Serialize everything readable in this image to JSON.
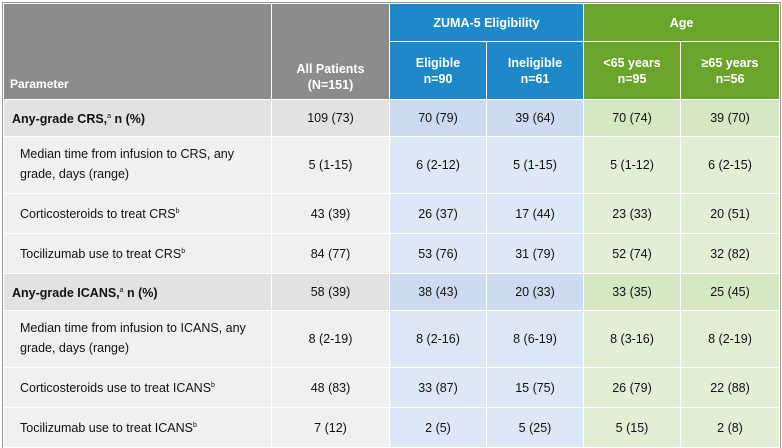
{
  "headers": {
    "parameter": "Parameter",
    "all_patients": "All Patients",
    "all_patients_n": "(N=151)",
    "zuma_group": "ZUMA-5 Eligibility",
    "age_group": "Age",
    "eligible": "Eligible",
    "eligible_n": "n=90",
    "ineligible": "Ineligible",
    "ineligible_n": "n=61",
    "under65": "<65 years",
    "under65_n": "n=95",
    "over65": "≥65 years",
    "over65_n": "n=56"
  },
  "rows": [
    {
      "label_pre": "Any-grade CRS,",
      "sup": "a",
      "label_post": " n (%)",
      "all": "109 (73)",
      "eligible": "70 (79)",
      "ineligible": "39 (64)",
      "under65": "70 (74)",
      "over65": "39 (70)"
    },
    {
      "label_pre": "Median time from infusion to CRS, any grade, days (range)",
      "sup": "",
      "label_post": "",
      "all": "5 (1-15)",
      "eligible": "6 (2-12)",
      "ineligible": "5 (1-15)",
      "under65": "5 (1-12)",
      "over65": "6 (2-15)"
    },
    {
      "label_pre": "Corticosteroids to treat CRS",
      "sup": "b",
      "label_post": "",
      "all": "43 (39)",
      "eligible": "26 (37)",
      "ineligible": "17 (44)",
      "under65": "23 (33)",
      "over65": "20 (51)"
    },
    {
      "label_pre": "Tocilizumab use to treat CRS",
      "sup": "b",
      "label_post": "",
      "all": "84 (77)",
      "eligible": "53 (76)",
      "ineligible": "31 (79)",
      "under65": "52 (74)",
      "over65": "32 (82)"
    },
    {
      "label_pre": "Any-grade ICANS,",
      "sup": "a",
      "label_post": " n (%)",
      "all": "58 (39)",
      "eligible": "38 (43)",
      "ineligible": "20 (33)",
      "under65": "33 (35)",
      "over65": "25 (45)"
    },
    {
      "label_pre": "Median time from infusion to ICANS, any grade, days (range)",
      "sup": "",
      "label_post": "",
      "all": "8 (2-19)",
      "eligible": "8 (2-16)",
      "ineligible": "8 (6-19)",
      "under65": "8 (3-16)",
      "over65": "8 (2-19)"
    },
    {
      "label_pre": "Corticosteroids use to treat ICANS",
      "sup": "b",
      "label_post": "",
      "all": "48 (83)",
      "eligible": "33 (87)",
      "ineligible": "15 (75)",
      "under65": "26 (79)",
      "over65": "22 (88)"
    },
    {
      "label_pre": "Tocilizumab use to treat ICANS",
      "sup": "b",
      "label_post": "",
      "all": "7 (12)",
      "eligible": "2 (5)",
      "ineligible": "5 (25)",
      "under65": "5 (15)",
      "over65": "2 (8)"
    }
  ]
}
